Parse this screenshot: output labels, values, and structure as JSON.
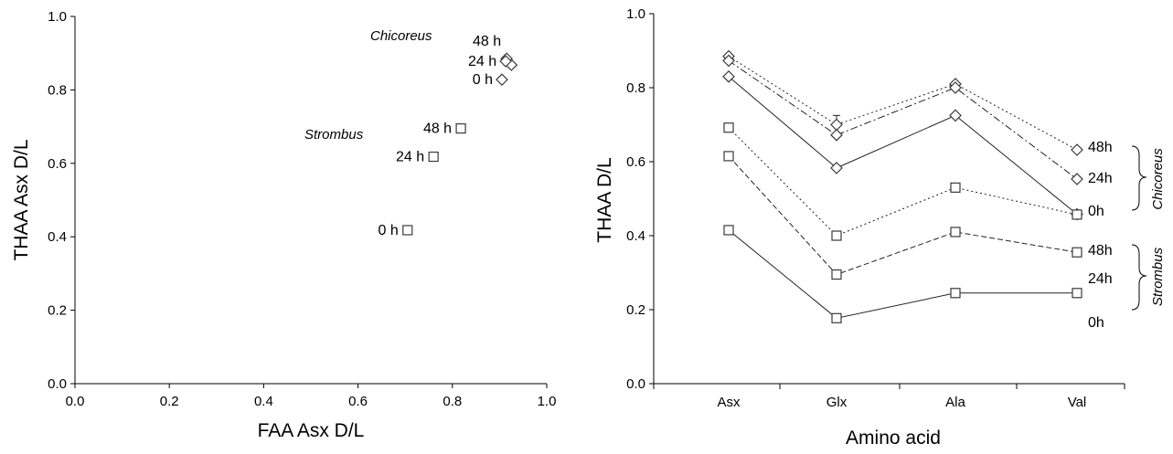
{
  "colors": {
    "ink": "#000000",
    "marker_stroke": "#3a3a3a",
    "background": "#ffffff"
  },
  "chart_data": [
    {
      "type": "scatter",
      "title": "",
      "xlabel": "FAA Asx D/L",
      "ylabel": "THAA Asx D/L",
      "xlim": [
        0,
        1
      ],
      "ylim": [
        0,
        1
      ],
      "xticks": [
        "0.0",
        "0.2",
        "0.4",
        "0.6",
        "0.8",
        "1.0"
      ],
      "yticks": [
        "0.0",
        "0.2",
        "0.4",
        "0.6",
        "0.8",
        "1.0"
      ],
      "grid": false,
      "groups": [
        {
          "name": "Chicoreus",
          "marker": "diamond",
          "points": [
            {
              "label": "48 h",
              "x": 0.915,
              "y": 0.885
            },
            {
              "label": "",
              "x": 0.925,
              "y": 0.868
            },
            {
              "label": "24 h",
              "x": 0.913,
              "y": 0.878
            },
            {
              "label": "0 h",
              "x": 0.905,
              "y": 0.828
            }
          ]
        },
        {
          "name": "Strombus",
          "marker": "square",
          "points": [
            {
              "label": "48 h",
              "x": 0.818,
              "y": 0.695
            },
            {
              "label": "24 h",
              "x": 0.76,
              "y": 0.618
            },
            {
              "label": "0 h",
              "x": 0.705,
              "y": 0.418
            }
          ]
        }
      ]
    },
    {
      "type": "line",
      "title": "",
      "xlabel": "Amino acid",
      "ylabel": "THAA D/L",
      "categories": [
        "Asx",
        "Glx",
        "Ala",
        "Val"
      ],
      "ylim": [
        0,
        1
      ],
      "yticks": [
        "0.0",
        "0.2",
        "0.4",
        "0.6",
        "0.8",
        "1.0"
      ],
      "grid": false,
      "legend": "bracketed labels on right",
      "series": [
        {
          "name": "48h",
          "group": "Chicoreus",
          "marker": "diamond",
          "dash": "dotted",
          "values": [
            0.885,
            0.7,
            0.81,
            0.632
          ]
        },
        {
          "name": "24h",
          "group": "Chicoreus",
          "marker": "diamond",
          "dash": "dashdot",
          "values": [
            0.873,
            0.672,
            0.8,
            0.553
          ]
        },
        {
          "name": "0h",
          "group": "Chicoreus",
          "marker": "diamond",
          "dash": "solid",
          "values": [
            0.83,
            0.583,
            0.725,
            0.458
          ]
        },
        {
          "name": "48h",
          "group": "Strombus",
          "marker": "square",
          "dash": "dotted",
          "values": [
            0.692,
            0.4,
            0.53,
            0.457
          ]
        },
        {
          "name": "24h",
          "group": "Strombus",
          "marker": "square",
          "dash": "dashed",
          "values": [
            0.615,
            0.295,
            0.41,
            0.355
          ]
        },
        {
          "name": "0h",
          "group": "Strombus",
          "marker": "square",
          "dash": "solid",
          "values": [
            0.415,
            0.177,
            0.245,
            0.245
          ]
        }
      ],
      "error_bars": [
        {
          "series_index": 0,
          "category": "Glx",
          "value": 0.7,
          "plus": 0.025
        }
      ]
    }
  ]
}
